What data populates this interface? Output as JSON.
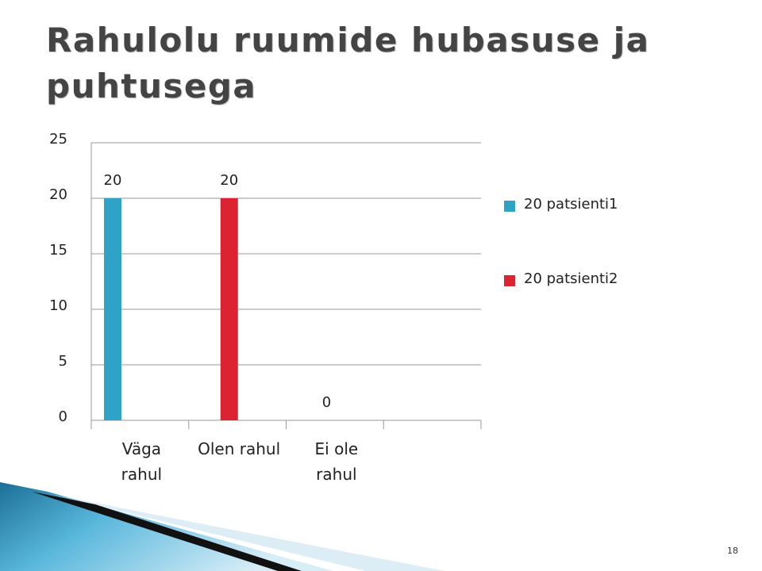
{
  "chart_data": {
    "type": "bar",
    "title": "Rahulolu ruumide hubasuse ja puhtusega",
    "categories": [
      "Väga\nrahul",
      "Olen rahul",
      "Ei ole\nrahul",
      null
    ],
    "series": [
      {
        "name": "20 patsienti1",
        "color": "#2ea3c6",
        "values": [
          20,
          null,
          null,
          null
        ]
      },
      {
        "name": "20 patsienti2",
        "color": "#dc2331",
        "values": [
          null,
          20,
          0,
          null
        ]
      }
    ],
    "ylim": [
      0,
      25
    ],
    "yticks": [
      0,
      5,
      10,
      15,
      20,
      25
    ],
    "grid": true,
    "legend": "right"
  },
  "slide_number": "18"
}
